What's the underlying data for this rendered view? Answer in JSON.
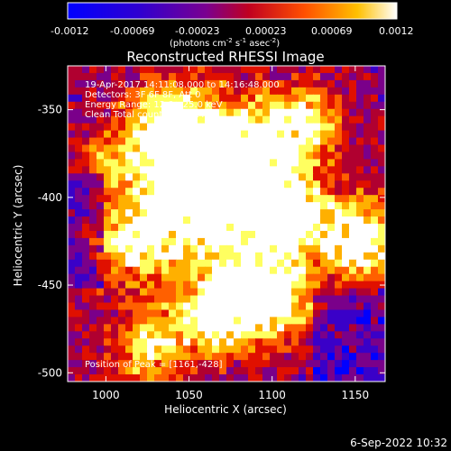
{
  "colorbar": {
    "ticks": [
      "-0.0012",
      "-0.00069",
      "-0.00023",
      "0.00023",
      "0.00069",
      "0.0012"
    ],
    "unit_prefix": "(photons cm",
    "unit_exp1": "-2",
    "unit_mid": " s",
    "unit_exp2": "-1",
    "unit_mid2": " asec",
    "unit_exp3": "-2",
    "unit_suffix": ")"
  },
  "title": "Reconstructed RHESSI Image",
  "info_lines": [
    "19-Apr-2017 14:11:08.000 to 14:16:48.000",
    "Detectors: 3F 6F 8F, Att 0",
    "Energy Range: 12.0 - 25.0 keV",
    "Clean    Total counts: 8.29E+03"
  ],
  "peak_text": "Position of Peak = [1161,-428]",
  "footer_date": "6-Sep-2022 10:32",
  "chart_data": {
    "type": "heatmap",
    "title": "Reconstructed RHESSI Image",
    "xlabel": "Heliocentric X (arcsec)",
    "ylabel": "Heliocentric Y (arcsec)",
    "xlim": [
      977,
      1168
    ],
    "ylim": [
      -505,
      -325
    ],
    "x_ticks": [
      "1000",
      "1050",
      "1100",
      "1150"
    ],
    "x_tick_values": [
      1000,
      1050,
      1100,
      1150
    ],
    "y_ticks": [
      "-350",
      "-400",
      "-450",
      "-500"
    ],
    "y_tick_values": [
      -350,
      -400,
      -450,
      -500
    ],
    "colorscale_range": [
      -0.0012,
      0.0012
    ],
    "colormap": [
      "#0000ff",
      "#3a00c8",
      "#7a008a",
      "#b00030",
      "#e01000",
      "#ff6000",
      "#ffb000",
      "#ffff60",
      "#ffffff"
    ],
    "peak_position": [
      1161,
      -428
    ]
  }
}
